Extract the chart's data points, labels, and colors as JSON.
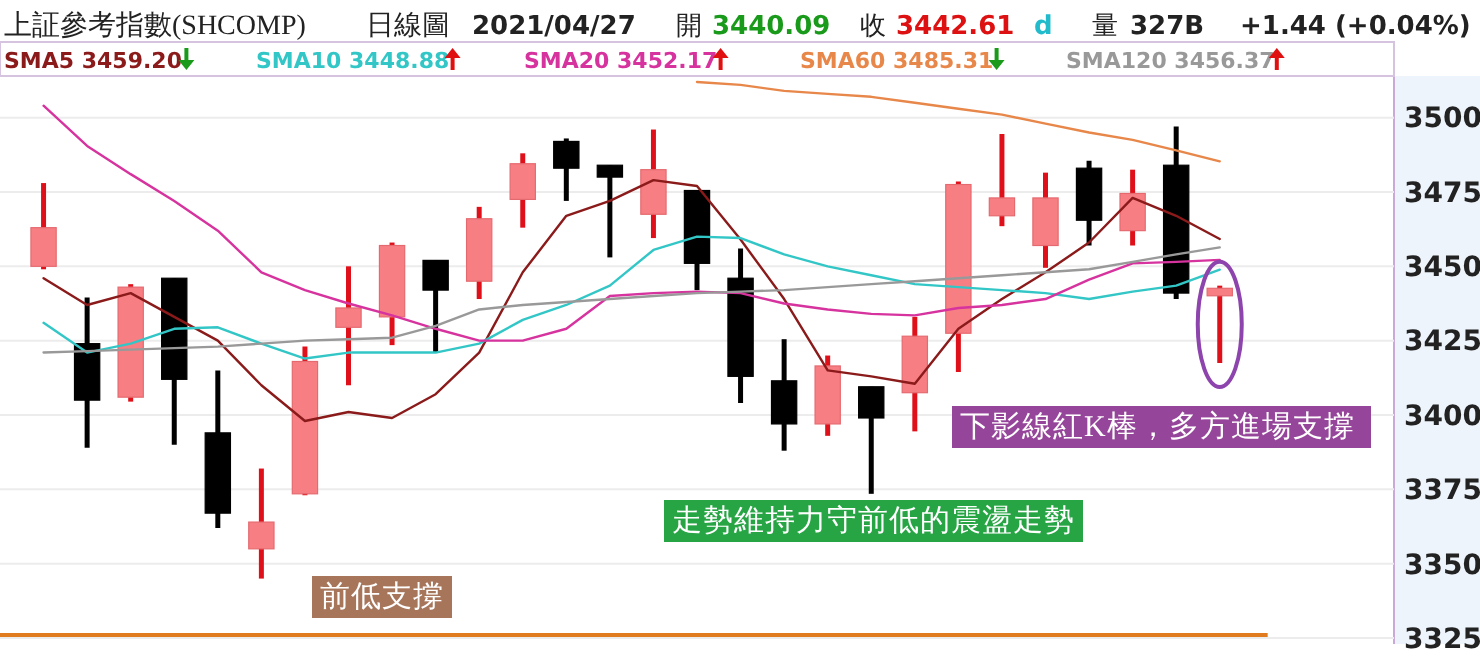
{
  "chart_data": {
    "type": "candlestick",
    "title": "上証參考指數(SHCOMP)",
    "subtitle": "日線圖",
    "annotations": [
      "2021/04/27",
      "開",
      "3440.09",
      "收",
      "3442.61",
      "d",
      "量",
      "327B",
      "+1.44 (+0.04%)",
      "前低支撐",
      "走勢維持力守前低的震盪走勢",
      "下影線紅K棒，多方進場支撐"
    ],
    "categories": [
      null,
      null,
      null,
      null,
      null,
      null,
      null,
      null,
      null,
      null,
      null,
      null,
      null,
      null,
      null,
      null,
      null,
      null,
      null,
      null,
      null,
      null,
      null,
      null,
      null,
      null,
      null,
      null
    ],
    "ohlc": [
      [
        3450,
        3478,
        3449,
        3463
      ],
      [
        3424,
        3439.5,
        3389,
        3405
      ],
      [
        3406,
        3444,
        3404.5,
        3443
      ],
      [
        3446,
        3446,
        3390,
        3412
      ],
      [
        3394,
        3415,
        3362,
        3367
      ],
      [
        3355,
        3382,
        3345,
        3364
      ],
      [
        3373.5,
        3423,
        3373,
        3418
      ],
      [
        3429.5,
        3450,
        3410,
        3436
      ],
      [
        3433,
        3458,
        3423.5,
        3457
      ],
      [
        3452,
        3452,
        3421,
        3442
      ],
      [
        3445,
        3470,
        3439,
        3466
      ],
      [
        3472.5,
        3488,
        3463,
        3484.5
      ],
      [
        3492,
        3493,
        3472,
        3483
      ],
      [
        3484,
        3484,
        3453,
        3480
      ],
      [
        3467.5,
        3496,
        3459.5,
        3482.5
      ],
      [
        3475.5,
        3475.5,
        3442,
        3451
      ],
      [
        3446,
        3456,
        3404,
        3413
      ],
      [
        3411.5,
        3425.5,
        3388,
        3397
      ],
      [
        3397,
        3420,
        3393,
        3416.5
      ],
      [
        3409.5,
        3409.5,
        3373.5,
        3399
      ],
      [
        3407.5,
        3433,
        3394.5,
        3426.5
      ],
      [
        3427.5,
        3478.5,
        3414.5,
        3477.5
      ],
      [
        3467,
        3494.5,
        3463.5,
        3473
      ],
      [
        3457,
        3481.5,
        3449.5,
        3473
      ],
      [
        3483,
        3485.5,
        3457,
        3465.5
      ],
      [
        3462,
        3482.5,
        3457,
        3474.5
      ],
      [
        3484,
        3497,
        3439,
        3441
      ],
      [
        3440.09,
        3443.5,
        3417.5,
        3442.61
      ]
    ],
    "series": [
      {
        "name": "SMA5 3459.20",
        "type": "line",
        "color": "#8b1a1a",
        "values": [
          3446,
          3437,
          3441,
          3433,
          3425,
          3410,
          3398,
          3401,
          3399,
          3407,
          3421,
          3448,
          3467,
          3472,
          3479,
          3477,
          3459,
          3439,
          3415,
          3413,
          3410.5,
          3429,
          3439,
          3448,
          3458,
          3473,
          3467,
          3459.2
        ]
      },
      {
        "name": "SMA10 3448.88",
        "type": "line",
        "color": "#33c6c6",
        "values": [
          3431,
          3421,
          3424,
          3429,
          3429.5,
          3424,
          3419,
          3421,
          3421,
          3421,
          3424,
          3432,
          3437,
          3443.5,
          3455.5,
          3460,
          3459.5,
          3454,
          3450,
          3447,
          3444,
          3443,
          3442,
          3441,
          3439,
          3441.5,
          3443.5,
          3448.88
        ]
      },
      {
        "name": "SMA20 3452.17",
        "type": "line",
        "color": "#d6339e",
        "values": [
          3504,
          3490.5,
          3481,
          3472,
          3462,
          3448,
          3442,
          3437.5,
          3433.5,
          3429,
          3425,
          3425,
          3429,
          3440,
          3441,
          3441.5,
          3441,
          3437.5,
          3435.5,
          3434,
          3433.5,
          3436,
          3437,
          3439,
          3445.5,
          3451,
          3451.5,
          3452.17
        ]
      },
      {
        "name": "SMA60 3485.31",
        "type": "line",
        "color": "#e8874a",
        "values": [
          null,
          null,
          null,
          null,
          null,
          null,
          null,
          null,
          null,
          null,
          null,
          null,
          null,
          null,
          null,
          3512,
          3511,
          3509,
          3508,
          3507,
          3505,
          3503,
          3501,
          3498,
          3495,
          3492.5,
          3489,
          3485.31
        ]
      },
      {
        "name": "SMA120 3456.37",
        "type": "line",
        "color": "#999999",
        "values": [
          3421,
          3421.5,
          3422,
          3422.5,
          3423,
          3424,
          3425,
          3425.5,
          3426,
          3430,
          3435.5,
          3437,
          3438,
          3439,
          3440,
          3441,
          3441.5,
          3442,
          3443,
          3444,
          3445,
          3446,
          3447,
          3448,
          3449,
          3451.5,
          3454,
          3456.37
        ]
      }
    ],
    "ylim": [
      3323,
      3514
    ],
    "yticks": [
      3325,
      3350,
      3375,
      3400,
      3425,
      3450,
      3475,
      3500
    ],
    "grid": "y",
    "legend": "top",
    "ref_lines": [
      {
        "axis": "y",
        "value": 3326,
        "color": "#e07b20"
      }
    ]
  }
}
